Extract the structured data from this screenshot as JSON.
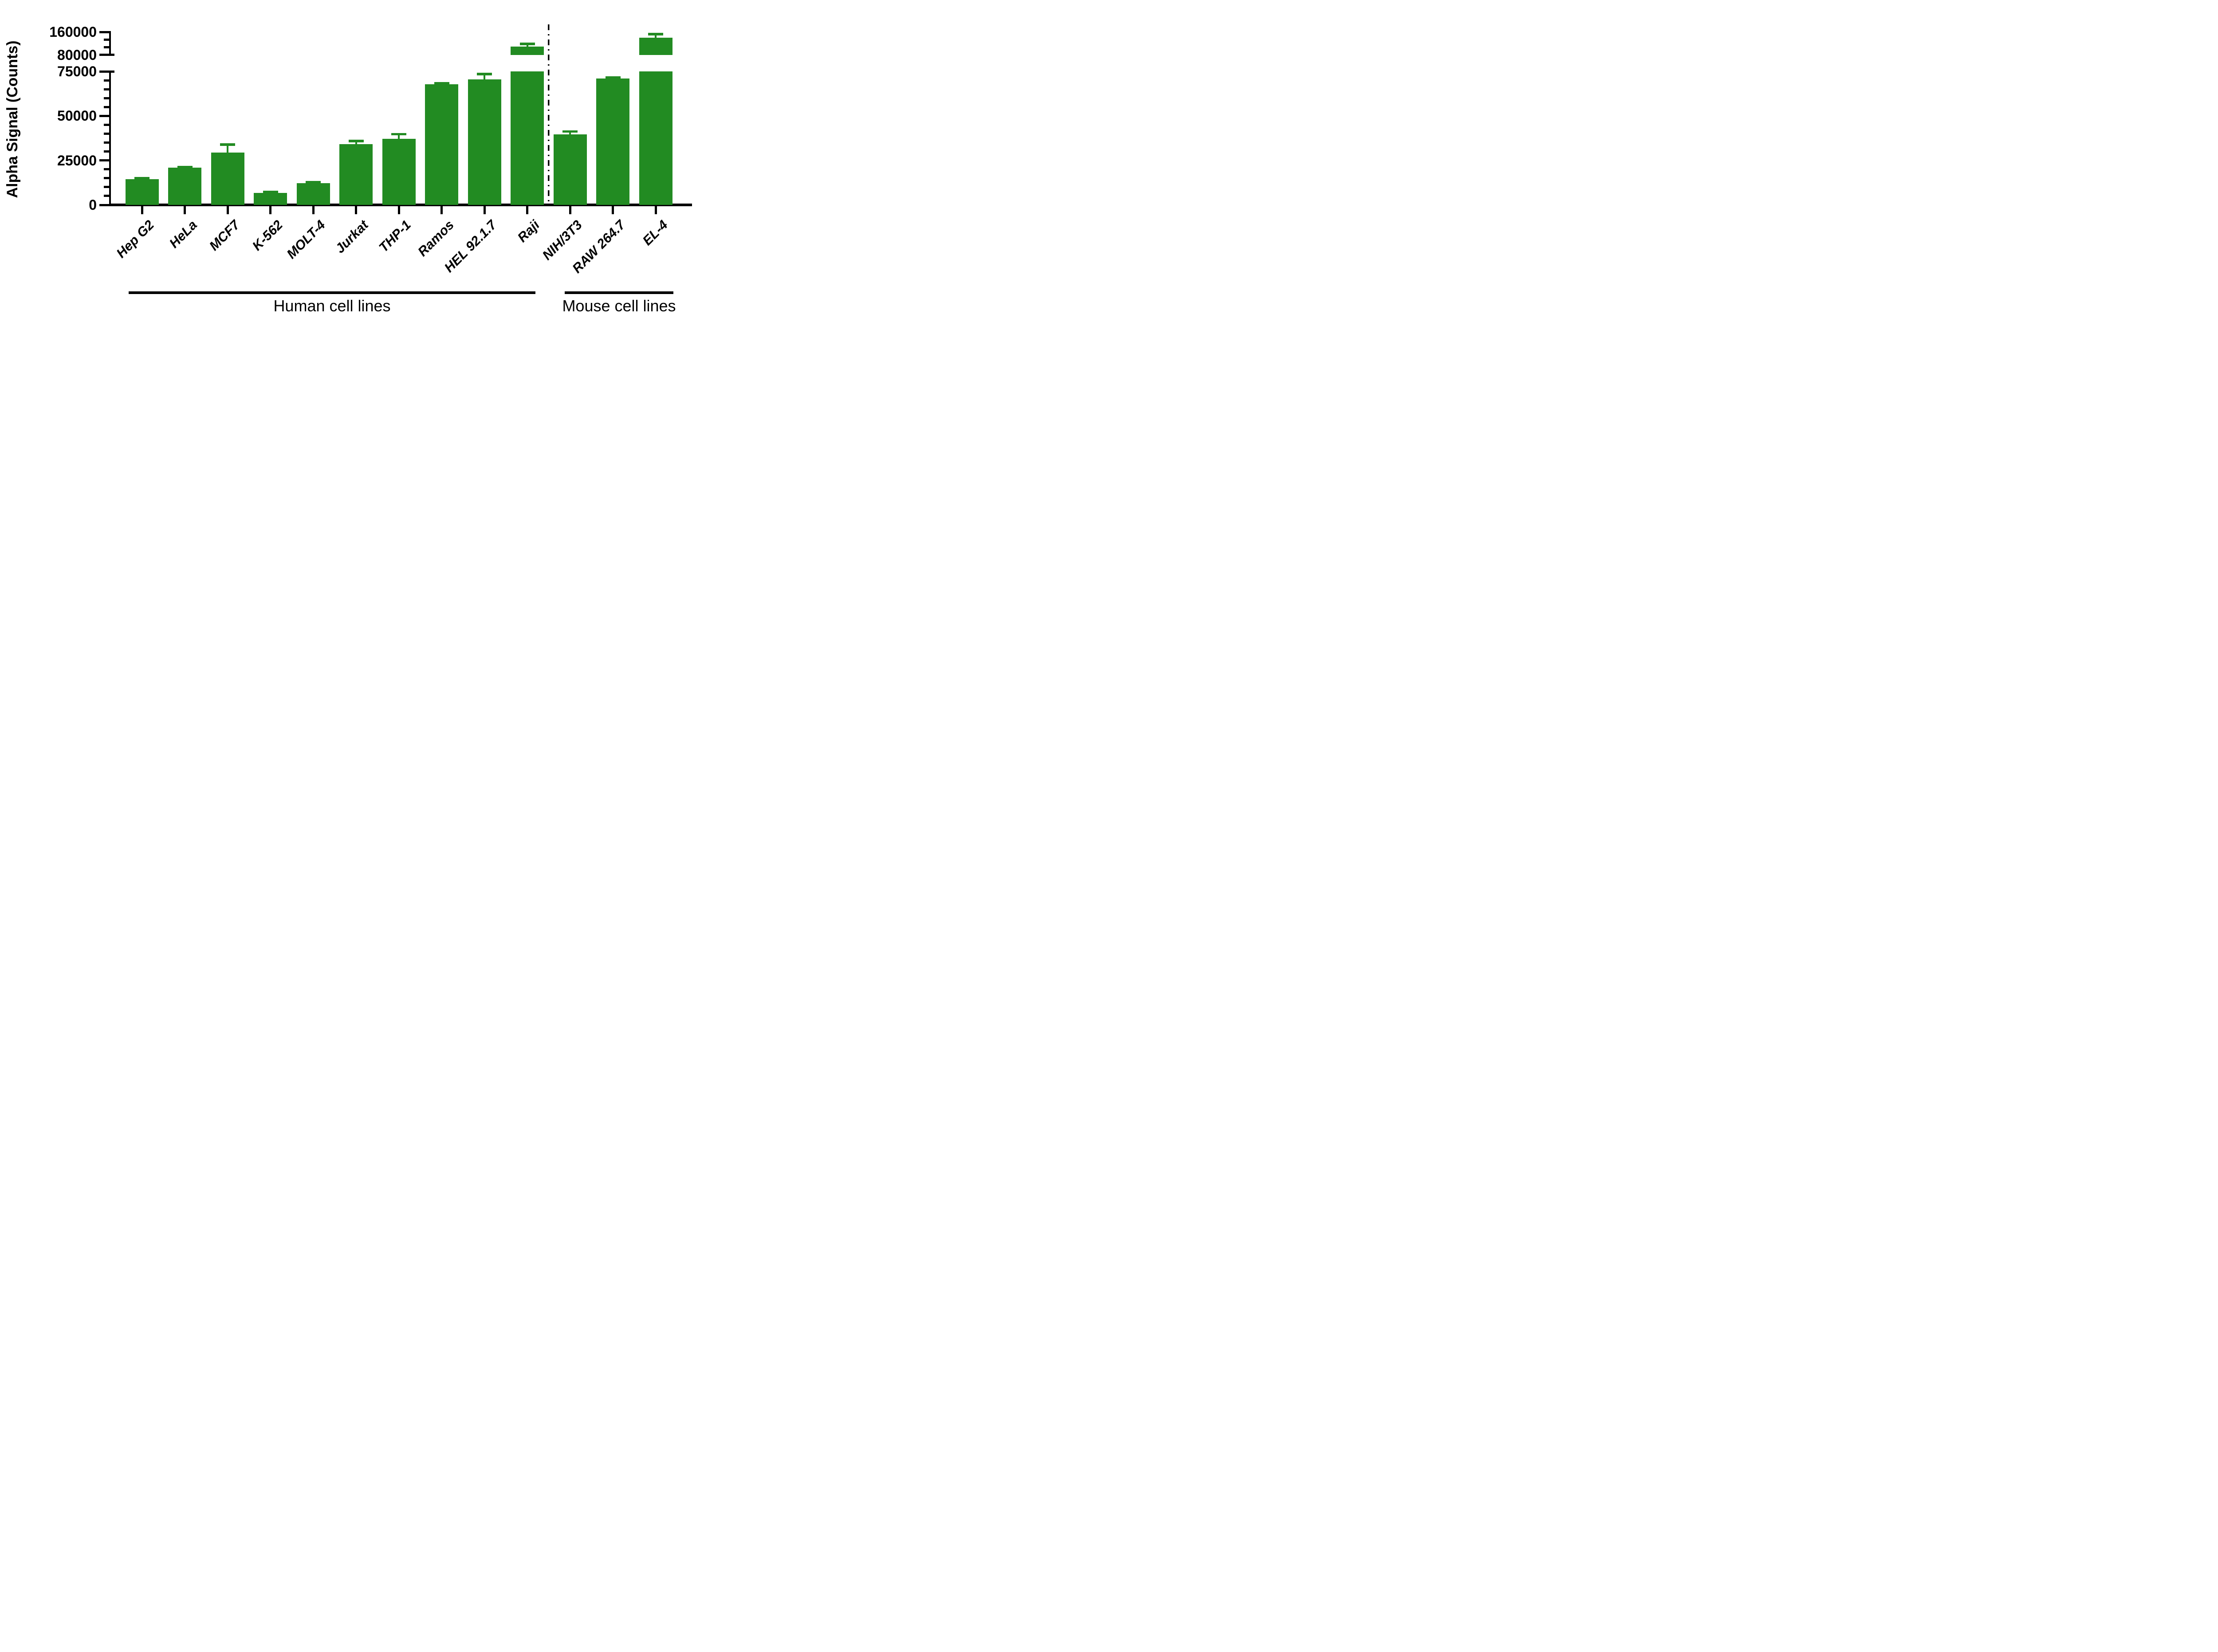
{
  "chart_data": {
    "type": "bar",
    "title": "",
    "ylabel": "Alpha Signal (Counts)",
    "xlabel": "",
    "grid": false,
    "legend": false,
    "bar_color": "#228B22",
    "axis_color": "#000000",
    "categories": [
      "Hep G2",
      "HeLa",
      "MCF7",
      "K-562",
      "MOLT-4",
      "Jurkat",
      "THP-1",
      "Ramos",
      "HEL 92.1.7",
      "Raji",
      "NIH/3T3",
      "RAW 264.7",
      "EL-4"
    ],
    "values": [
      14400,
      21000,
      29400,
      6800,
      12100,
      34100,
      37200,
      67700,
      70600,
      108500,
      39700,
      70900,
      141000
    ],
    "errors_upper_sd": [
      600,
      300,
      4500,
      400,
      600,
      1800,
      2600,
      700,
      2900,
      10000,
      1600,
      600,
      12000
    ],
    "y_axis": {
      "broken": true,
      "lower_segment": {
        "min": 0,
        "max": 75000,
        "major_ticks": [
          0,
          25000,
          50000,
          75000
        ],
        "minor_tick_step": 5000
      },
      "upper_segment": {
        "min": 80000,
        "max": 160000,
        "major_ticks": [
          80000,
          160000
        ],
        "minor_divisions": 3
      },
      "tick_labels": [
        "0",
        "25000",
        "50000",
        "75000",
        "80000",
        "160000"
      ]
    },
    "separator": {
      "style": "dash-dot",
      "between": [
        "Raji",
        "NIH/3T3"
      ]
    },
    "groups": [
      {
        "label": "Human cell lines",
        "start_index": 0,
        "end_index": 9
      },
      {
        "label": "Mouse cell lines",
        "start_index": 10,
        "end_index": 12
      }
    ]
  }
}
